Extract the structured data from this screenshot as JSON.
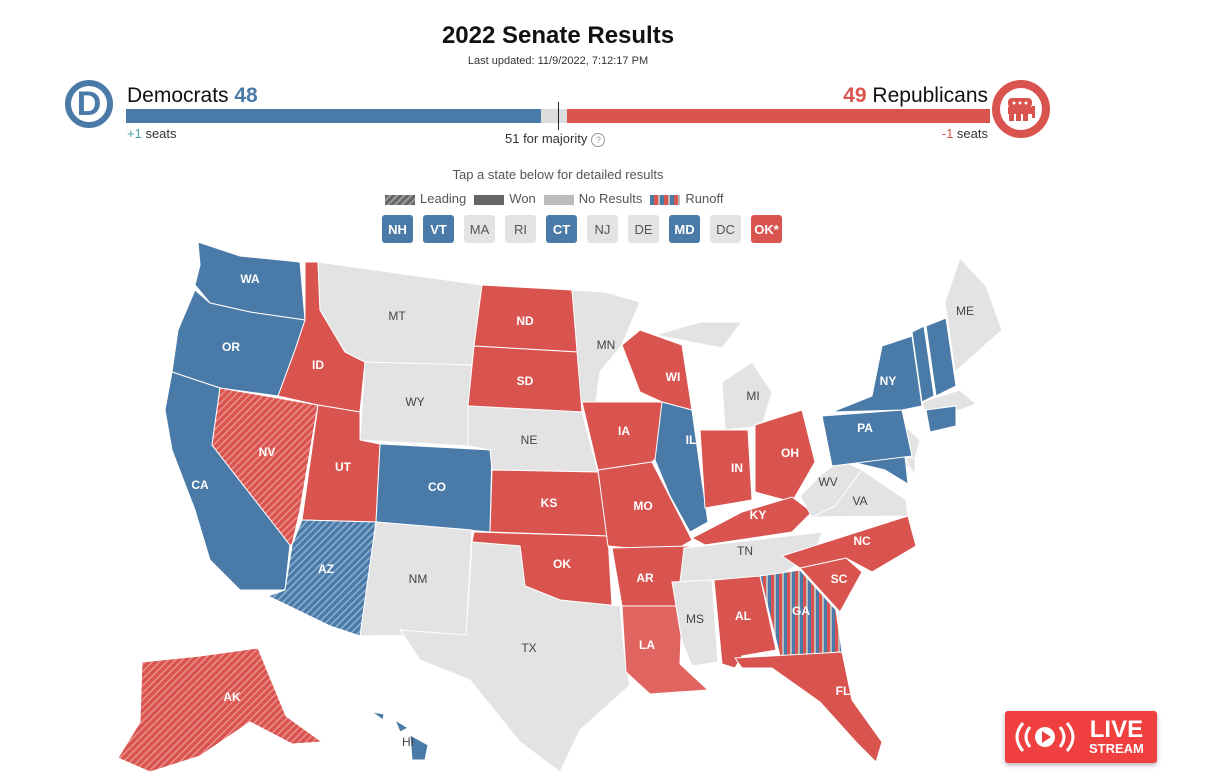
{
  "header": {
    "title": "2022 Senate Results",
    "updated": "Last updated: 11/9/2022, 7:12:17 PM"
  },
  "dem": {
    "name": "Democrats",
    "seats": "48",
    "change": "+1",
    "seats_label": "seats",
    "logo": "D",
    "color": "#4a7aa8"
  },
  "rep": {
    "name": "Republicans",
    "seats": "49",
    "change": "-1",
    "seats_label": "seats",
    "color": "#d9534f"
  },
  "balance": {
    "dem_seats": 48,
    "rep_seats": 49,
    "total": 100,
    "majority_label": "51 for majority",
    "help": "?"
  },
  "tap_hint": "Tap a state below for detailed results",
  "legend": [
    "Leading",
    "Won",
    "No Results",
    "Runoff"
  ],
  "small_states": [
    {
      "abbr": "NH",
      "status": "dem"
    },
    {
      "abbr": "VT",
      "status": "dem"
    },
    {
      "abbr": "MA",
      "status": "none"
    },
    {
      "abbr": "RI",
      "status": "none"
    },
    {
      "abbr": "CT",
      "status": "dem"
    },
    {
      "abbr": "NJ",
      "status": "none"
    },
    {
      "abbr": "DE",
      "status": "none"
    },
    {
      "abbr": "MD",
      "status": "dem"
    },
    {
      "abbr": "DC",
      "status": "none"
    },
    {
      "abbr": "OK*",
      "status": "rep"
    }
  ],
  "states": [
    {
      "abbr": "WA",
      "status": "dem"
    },
    {
      "abbr": "OR",
      "status": "dem"
    },
    {
      "abbr": "CA",
      "status": "dem"
    },
    {
      "abbr": "NV",
      "status": "rep-lead"
    },
    {
      "abbr": "ID",
      "status": "rep"
    },
    {
      "abbr": "MT",
      "status": "none"
    },
    {
      "abbr": "WY",
      "status": "none"
    },
    {
      "abbr": "UT",
      "status": "rep"
    },
    {
      "abbr": "CO",
      "status": "dem"
    },
    {
      "abbr": "AZ",
      "status": "dem-lead"
    },
    {
      "abbr": "NM",
      "status": "none"
    },
    {
      "abbr": "ND",
      "status": "rep"
    },
    {
      "abbr": "SD",
      "status": "rep"
    },
    {
      "abbr": "NE",
      "status": "none"
    },
    {
      "abbr": "KS",
      "status": "rep"
    },
    {
      "abbr": "OK",
      "status": "rep"
    },
    {
      "abbr": "TX",
      "status": "none"
    },
    {
      "abbr": "MN",
      "status": "none"
    },
    {
      "abbr": "IA",
      "status": "rep"
    },
    {
      "abbr": "MO",
      "status": "rep"
    },
    {
      "abbr": "AR",
      "status": "rep"
    },
    {
      "abbr": "LA",
      "status": "rep-lighter"
    },
    {
      "abbr": "WI",
      "status": "rep"
    },
    {
      "abbr": "IL",
      "status": "dem"
    },
    {
      "abbr": "MI",
      "status": "none"
    },
    {
      "abbr": "IN",
      "status": "rep"
    },
    {
      "abbr": "OH",
      "status": "rep"
    },
    {
      "abbr": "KY",
      "status": "rep"
    },
    {
      "abbr": "TN",
      "status": "none"
    },
    {
      "abbr": "MS",
      "status": "none"
    },
    {
      "abbr": "AL",
      "status": "rep"
    },
    {
      "abbr": "GA",
      "status": "runoff"
    },
    {
      "abbr": "FL",
      "status": "rep"
    },
    {
      "abbr": "SC",
      "status": "rep"
    },
    {
      "abbr": "NC",
      "status": "rep"
    },
    {
      "abbr": "VA",
      "status": "none"
    },
    {
      "abbr": "WV",
      "status": "none"
    },
    {
      "abbr": "PA",
      "status": "dem"
    },
    {
      "abbr": "NY",
      "status": "dem"
    },
    {
      "abbr": "ME",
      "status": "none"
    },
    {
      "abbr": "AK",
      "status": "rep-lead"
    },
    {
      "abbr": "HI",
      "status": "dem"
    }
  ],
  "live": {
    "line1": "LIVE",
    "line2": "STREAM"
  }
}
